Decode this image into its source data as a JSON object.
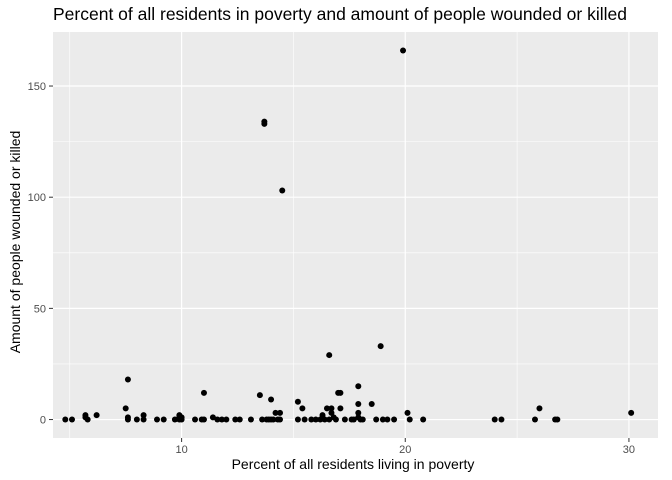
{
  "chart_data": {
    "type": "scatter",
    "title": "Percent of all residents in poverty and amount of people wounded or killed",
    "xlabel": "Percent of all residents living in poverty",
    "ylabel": "Amount of people wounded or killed",
    "xlim": [
      4.25,
      31.3
    ],
    "ylim": [
      -8.3,
      174.3
    ],
    "x_ticks": [
      10,
      20,
      30
    ],
    "x_minor": [
      5,
      15,
      25
    ],
    "y_ticks": [
      0,
      50,
      100,
      150
    ],
    "y_minor": [
      25,
      75,
      125
    ],
    "grid": true,
    "background": "#ebebeb",
    "point_color": "#000000",
    "points": [
      [
        4.8,
        0
      ],
      [
        5.1,
        0
      ],
      [
        5.7,
        2
      ],
      [
        5.7,
        1
      ],
      [
        5.8,
        0
      ],
      [
        6.2,
        2
      ],
      [
        7.5,
        5
      ],
      [
        7.6,
        18
      ],
      [
        7.6,
        0
      ],
      [
        7.6,
        1
      ],
      [
        8.0,
        0
      ],
      [
        8.3,
        0
      ],
      [
        8.3,
        2
      ],
      [
        8.9,
        0
      ],
      [
        9.2,
        0
      ],
      [
        9.7,
        0
      ],
      [
        9.9,
        0
      ],
      [
        9.9,
        1
      ],
      [
        9.9,
        2
      ],
      [
        10.0,
        0
      ],
      [
        10.0,
        1
      ],
      [
        10.6,
        0
      ],
      [
        10.9,
        0
      ],
      [
        11.0,
        12
      ],
      [
        11.0,
        0
      ],
      [
        11.4,
        1
      ],
      [
        11.6,
        0
      ],
      [
        11.8,
        0
      ],
      [
        12.0,
        0
      ],
      [
        12.4,
        0
      ],
      [
        12.6,
        0
      ],
      [
        13.1,
        0
      ],
      [
        13.5,
        11
      ],
      [
        13.6,
        0
      ],
      [
        13.7,
        134
      ],
      [
        13.7,
        133
      ],
      [
        13.8,
        0
      ],
      [
        13.9,
        0
      ],
      [
        14.0,
        9
      ],
      [
        14.0,
        0
      ],
      [
        14.1,
        0
      ],
      [
        14.2,
        3
      ],
      [
        14.3,
        0
      ],
      [
        14.4,
        3
      ],
      [
        14.4,
        0
      ],
      [
        14.5,
        103
      ],
      [
        15.2,
        8
      ],
      [
        15.2,
        0
      ],
      [
        15.4,
        5
      ],
      [
        15.5,
        0
      ],
      [
        15.8,
        0
      ],
      [
        16.0,
        0
      ],
      [
        16.2,
        0
      ],
      [
        16.3,
        2
      ],
      [
        16.4,
        0
      ],
      [
        16.5,
        5
      ],
      [
        16.6,
        29
      ],
      [
        16.6,
        0
      ],
      [
        16.7,
        3
      ],
      [
        16.7,
        5
      ],
      [
        16.8,
        1
      ],
      [
        16.9,
        0
      ],
      [
        17.0,
        12
      ],
      [
        17.1,
        12
      ],
      [
        17.1,
        5
      ],
      [
        17.3,
        0
      ],
      [
        17.6,
        0
      ],
      [
        17.7,
        0
      ],
      [
        17.9,
        15
      ],
      [
        17.9,
        7
      ],
      [
        17.9,
        3
      ],
      [
        17.9,
        1
      ],
      [
        18.0,
        0
      ],
      [
        18.1,
        0
      ],
      [
        18.5,
        7
      ],
      [
        18.7,
        0
      ],
      [
        18.9,
        33
      ],
      [
        19.0,
        0
      ],
      [
        19.2,
        0
      ],
      [
        19.5,
        0
      ],
      [
        19.9,
        166
      ],
      [
        20.1,
        3
      ],
      [
        20.2,
        0
      ],
      [
        20.8,
        0
      ],
      [
        24.0,
        0
      ],
      [
        24.3,
        0
      ],
      [
        25.8,
        0
      ],
      [
        26.0,
        5
      ],
      [
        26.7,
        0
      ],
      [
        26.8,
        0
      ],
      [
        30.1,
        3
      ]
    ]
  }
}
